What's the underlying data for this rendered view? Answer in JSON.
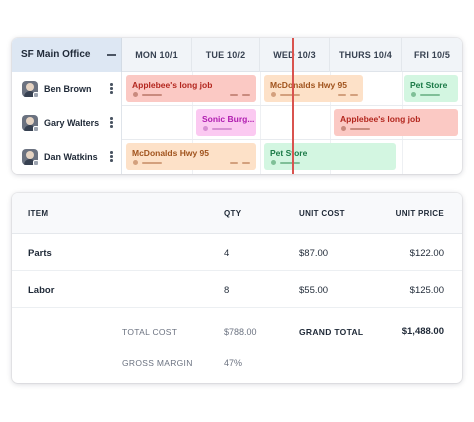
{
  "schedule": {
    "office": "SF Main Office",
    "days": [
      "MON 10/1",
      "TUE 10/2",
      "WED 10/3",
      "THURS 10/4",
      "FRI 10/5"
    ],
    "rows": [
      {
        "name": "Ben Brown",
        "jobs": [
          {
            "title": "Applebee's long job",
            "color": "#fbc9c4"
          },
          {
            "title": "McDonalds Hwy 95",
            "color": "#fde1c8"
          },
          {
            "title": "Pet Store",
            "color": "#d3f6e1"
          }
        ]
      },
      {
        "name": "Gary Walters",
        "jobs": [
          {
            "title": "Sonic Burg...",
            "color": "#fbc9f1"
          },
          {
            "title": "Applebee's long job",
            "color": "#fbc9c4"
          }
        ]
      },
      {
        "name": "Dan Watkins",
        "jobs": [
          {
            "title": "McDonalds Hwy 95",
            "color": "#fde1c8"
          },
          {
            "title": "Pet Store",
            "color": "#d3f6e1"
          }
        ]
      }
    ],
    "now_line_color": "#d9534f"
  },
  "invoice": {
    "headers": {
      "item": "ITEM",
      "qty": "QTY",
      "unit_cost": "UNIT COST",
      "unit_price": "UNIT PRICE"
    },
    "items": [
      {
        "item": "Parts",
        "qty": "4",
        "unit_cost": "$87.00",
        "unit_price": "$122.00"
      },
      {
        "item": "Labor",
        "qty": "8",
        "unit_cost": "$55.00",
        "unit_price": "$125.00"
      }
    ],
    "total_cost_label": "TOTAL COST",
    "total_cost": "$788.00",
    "grand_total_label": "GRAND TOTAL",
    "grand_total": "$1,488.00",
    "gross_margin_label": "GROSS MARGIN",
    "gross_margin": "47%"
  }
}
